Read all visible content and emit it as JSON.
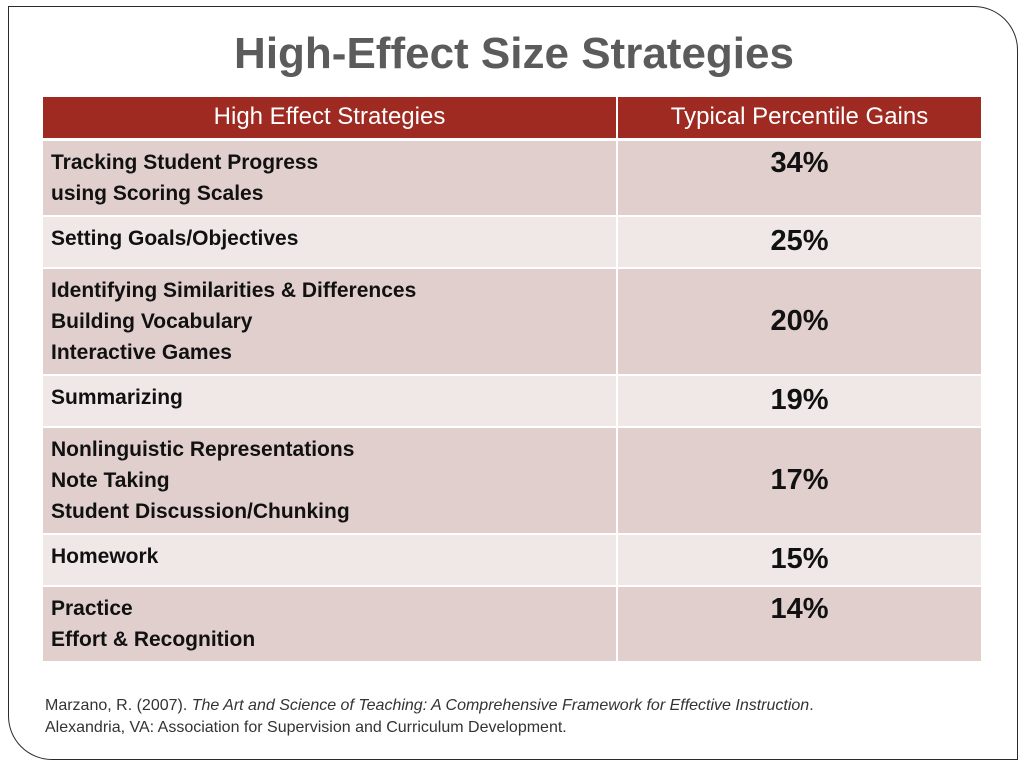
{
  "title": "High-Effect Size Strategies",
  "table": {
    "headers": [
      "High Effect Strategies",
      "Typical Percentile Gains"
    ],
    "rows": [
      {
        "strategies": [
          "Tracking Student Progress",
          "using Scoring Scales"
        ],
        "gain": "34%"
      },
      {
        "strategies": [
          "Setting Goals/Objectives"
        ],
        "gain": "25%"
      },
      {
        "strategies": [
          "Identifying Similarities & Differences",
          "Building Vocabulary",
          "Interactive Games"
        ],
        "gain": "20%"
      },
      {
        "strategies": [
          "Summarizing"
        ],
        "gain": "19%"
      },
      {
        "strategies": [
          "Nonlinguistic Representations",
          "Note Taking",
          "Student Discussion/Chunking"
        ],
        "gain": "17%"
      },
      {
        "strategies": [
          "Homework"
        ],
        "gain": "15%"
      },
      {
        "strategies": [
          "Practice",
          "Effort & Recognition"
        ],
        "gain": "14%"
      }
    ]
  },
  "citation": {
    "author": "Marzano, R. (2007). ",
    "work": "The Art and Science of Teaching: A Comprehensive Framework for Effective Instruction",
    "after_work": ".",
    "publisher": "Alexandria, VA: Association for Supervision and Curriculum Development."
  },
  "colors": {
    "header_bg": "#9e2a22",
    "row_dark": "#e1cfce",
    "row_light": "#efe8e7",
    "title_text": "#5b5b5b"
  }
}
